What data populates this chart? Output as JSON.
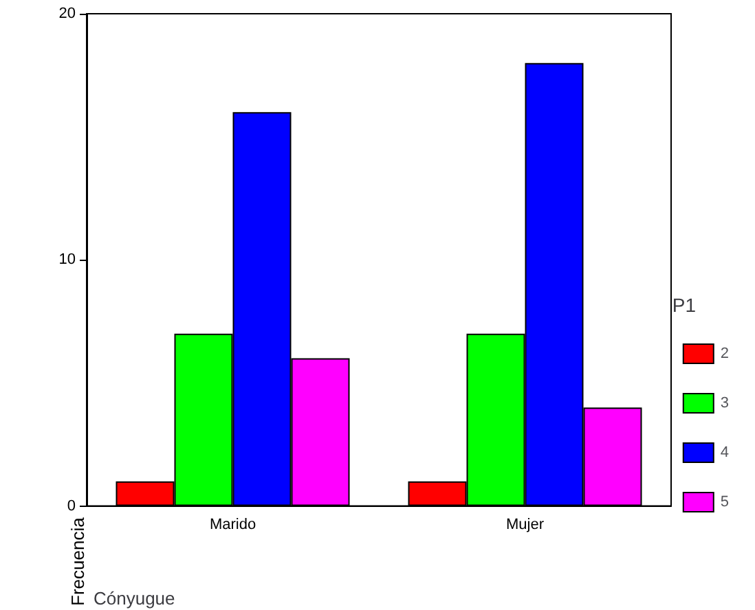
{
  "chart_data": {
    "type": "bar",
    "categories": [
      "Marido",
      "Mujer"
    ],
    "series": [
      {
        "name": "2",
        "color": "#ff0000",
        "values": [
          1,
          1
        ]
      },
      {
        "name": "3",
        "color": "#00ff00",
        "values": [
          7,
          7
        ]
      },
      {
        "name": "4",
        "color": "#0000ff",
        "values": [
          16,
          18
        ]
      },
      {
        "name": "5",
        "color": "#ff00ff",
        "values": [
          6,
          4
        ]
      }
    ],
    "ylim": [
      0,
      20
    ],
    "yticks": [
      0,
      10,
      20
    ],
    "xlabel": "Cónyugue",
    "ylabel": "Frecuencia",
    "legend_title": "P1",
    "legend": "right",
    "grid": false
  }
}
